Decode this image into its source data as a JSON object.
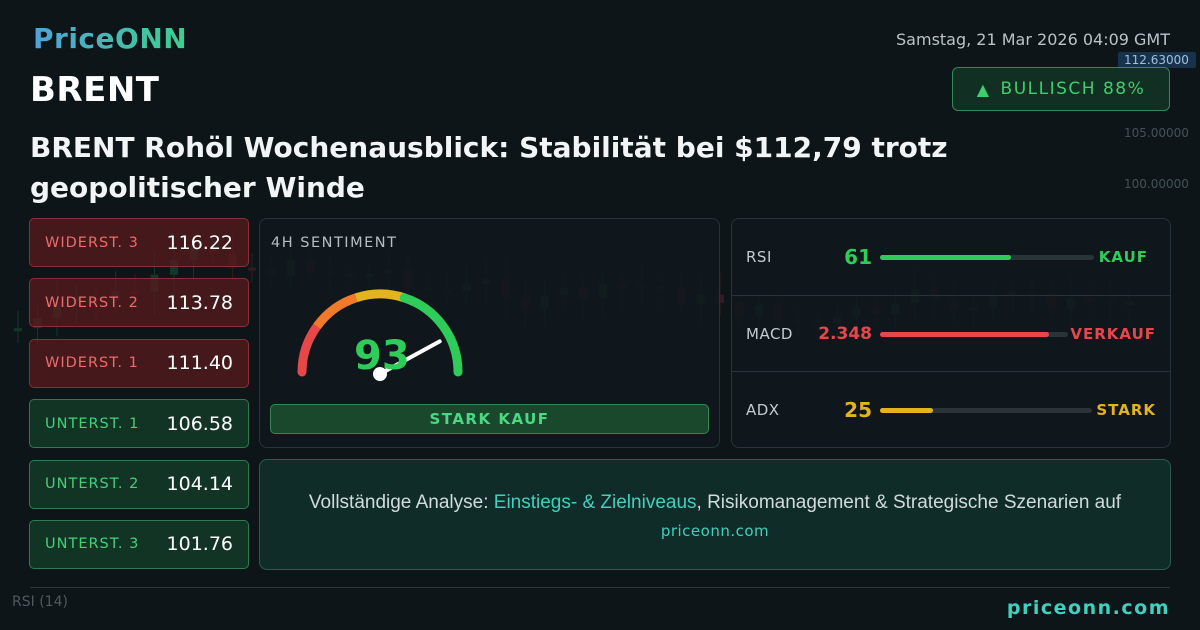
{
  "brand": {
    "logo": "PriceONN",
    "footer_url": "priceonn.com"
  },
  "datetime": "Samstag, 21 Mar 2026 04:09 GMT",
  "ticker": "BRENT",
  "badge": {
    "icon": "triangle-up-icon",
    "label": "BULLISCH 88%"
  },
  "headline": "BRENT Rohöl Wochenausblick: Stabilität bei $112,79 trotz geopolitischer Winde",
  "levels": [
    {
      "label": "WIDERST. 3",
      "value": "116.22",
      "kind": "resistance"
    },
    {
      "label": "WIDERST. 2",
      "value": "113.78",
      "kind": "resistance"
    },
    {
      "label": "WIDERST. 1",
      "value": "111.40",
      "kind": "resistance"
    },
    {
      "label": "UNTERST. 1",
      "value": "106.58",
      "kind": "support"
    },
    {
      "label": "UNTERST. 2",
      "value": "104.14",
      "kind": "support"
    },
    {
      "label": "UNTERST. 3",
      "value": "101.76",
      "kind": "support"
    }
  ],
  "sentiment": {
    "title": "4H SENTIMENT",
    "value": "93",
    "value_fraction": 0.93,
    "label": "STARK KAUF"
  },
  "indicators": [
    {
      "name": "RSI",
      "value": "61",
      "signal": "KAUF",
      "level": 0.61,
      "color": "#2ecc59"
    },
    {
      "name": "MACD",
      "value": "2.348",
      "signal": "VERKAUF",
      "level": 0.9,
      "color": "#e8474a"
    },
    {
      "name": "ADX",
      "value": "25",
      "signal": "STARK",
      "level": 0.25,
      "color": "#e5b31c"
    }
  ],
  "cta": {
    "prefix": "Vollständige Analyse: ",
    "highlight": "Einstiegs- & Zielniveaus",
    "suffix": ", Risikomanagement & Strategische Szenarien auf",
    "url": "priceonn.com"
  },
  "background_chart": {
    "price_labels": [
      "112.63000",
      "105.00000",
      "100.00000"
    ],
    "footer_rsi": "RSI (14)"
  },
  "colors": {
    "accent": "#3fd0c0",
    "bull": "#2ecc59",
    "bear": "#e8474a",
    "warn": "#e5b31c"
  }
}
